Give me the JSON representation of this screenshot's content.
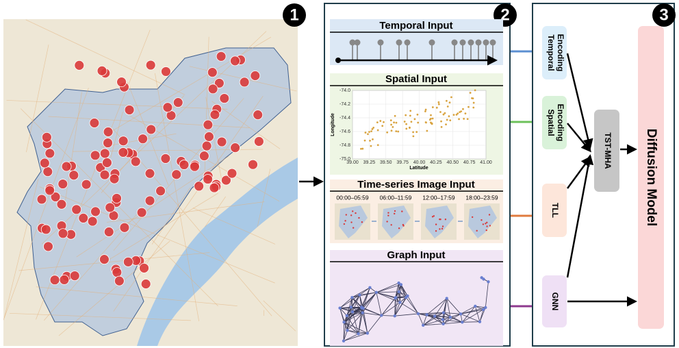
{
  "badges": [
    "1",
    "2",
    "3"
  ],
  "panels": {
    "temporal": {
      "title": "Temporal Input"
    },
    "spatial": {
      "title": "Spatial Input",
      "y_label": "Longitude",
      "x_label": "Latitude",
      "y_ticks": [
        "-74.0",
        "-74.2",
        "-74.4",
        "-74.6",
        "-74.8",
        "-75.0"
      ],
      "x_ticks": [
        "39.00",
        "39.25",
        "39.50",
        "39.75",
        "40.00",
        "40.25",
        "40.50",
        "40.75",
        "41.00"
      ]
    },
    "time_series": {
      "title": "Time-series Image Input",
      "windows": [
        "00:00–05:59",
        "06:00–11:59",
        "12:00–17:59",
        "18:00–23:59"
      ]
    },
    "graph": {
      "title": "Graph Input"
    }
  },
  "modules": {
    "temporal_encoding": [
      "Temporal",
      "Encoding"
    ],
    "spatial_encoding": [
      "Spatial",
      "Encoding"
    ],
    "tll": "TLL",
    "gnn": "GNN",
    "tst_mha": "TST-MHA",
    "diffusion": "Diffusion Model"
  }
}
